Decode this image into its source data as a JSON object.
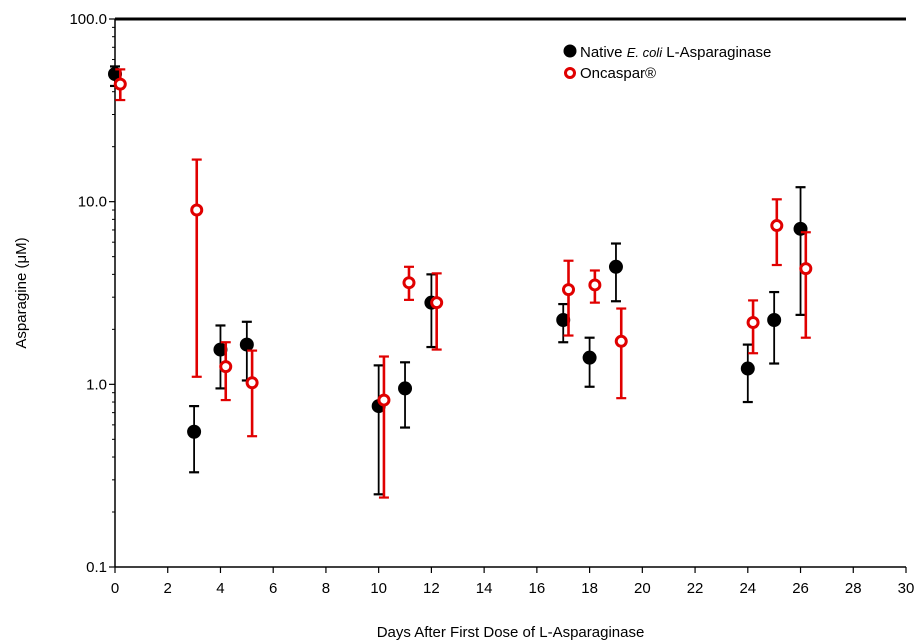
{
  "chart_data": {
    "type": "scatter",
    "xlabel": "Days After First Dose of L-Asparaginase",
    "ylabel": "Asparagine (μM)",
    "xlim": [
      0,
      30
    ],
    "ylim": [
      0.1,
      100
    ],
    "yscale": "log",
    "x_ticks": [
      "0",
      "2",
      "4",
      "6",
      "8",
      "10",
      "12",
      "14",
      "16",
      "18",
      "20",
      "22",
      "24",
      "26",
      "28",
      "30"
    ],
    "y_ticks": [
      "0.1",
      "1.0",
      "10.0",
      "100.0"
    ],
    "grid": false,
    "legend_position": "top-right",
    "series": [
      {
        "name_prefix": "Native ",
        "name_italic": "E. coli",
        "name_suffix": " L-Asparaginase",
        "color": "#000000",
        "marker": "filled-circle",
        "points": [
          {
            "x": 0,
            "y": 50,
            "low": 43,
            "high": 55
          },
          {
            "x": 3,
            "y": 0.55,
            "low": 0.33,
            "high": 0.76
          },
          {
            "x": 4,
            "y": 1.55,
            "low": 0.95,
            "high": 2.1
          },
          {
            "x": 5,
            "y": 1.65,
            "low": 1.05,
            "high": 2.2
          },
          {
            "x": 10,
            "y": 0.76,
            "low": 0.25,
            "high": 1.27
          },
          {
            "x": 11,
            "y": 0.95,
            "low": 0.58,
            "high": 1.32
          },
          {
            "x": 12,
            "y": 2.8,
            "low": 1.6,
            "high": 4.0
          },
          {
            "x": 17,
            "y": 2.25,
            "low": 1.7,
            "high": 2.75
          },
          {
            "x": 18,
            "y": 1.4,
            "low": 0.97,
            "high": 1.8
          },
          {
            "x": 19,
            "y": 4.4,
            "low": 2.85,
            "high": 5.9
          },
          {
            "x": 24,
            "y": 1.22,
            "low": 0.8,
            "high": 1.65
          },
          {
            "x": 25,
            "y": 2.25,
            "low": 1.3,
            "high": 3.2
          },
          {
            "x": 26,
            "y": 7.1,
            "low": 2.4,
            "high": 12.0
          }
        ]
      },
      {
        "name": "Oncaspar®",
        "color": "#e00000",
        "marker": "open-circle",
        "points": [
          {
            "x": 0.2,
            "y": 44,
            "low": 36,
            "high": 53
          },
          {
            "x": 3.1,
            "y": 9.0,
            "low": 1.1,
            "high": 17.0
          },
          {
            "x": 4.2,
            "y": 1.25,
            "low": 0.82,
            "high": 1.7
          },
          {
            "x": 5.2,
            "y": 1.02,
            "low": 0.52,
            "high": 1.53
          },
          {
            "x": 10.2,
            "y": 0.82,
            "low": 0.24,
            "high": 1.42
          },
          {
            "x": 11.15,
            "y": 3.6,
            "low": 2.9,
            "high": 4.4
          },
          {
            "x": 12.2,
            "y": 2.8,
            "low": 1.55,
            "high": 4.05
          },
          {
            "x": 17.2,
            "y": 3.3,
            "low": 1.85,
            "high": 4.75
          },
          {
            "x": 18.2,
            "y": 3.5,
            "low": 2.8,
            "high": 4.2
          },
          {
            "x": 19.2,
            "y": 1.72,
            "low": 0.84,
            "high": 2.6
          },
          {
            "x": 24.2,
            "y": 2.18,
            "low": 1.48,
            "high": 2.88
          },
          {
            "x": 25.1,
            "y": 7.4,
            "low": 4.5,
            "high": 10.3
          },
          {
            "x": 26.2,
            "y": 4.3,
            "low": 1.8,
            "high": 6.8
          }
        ]
      }
    ]
  }
}
